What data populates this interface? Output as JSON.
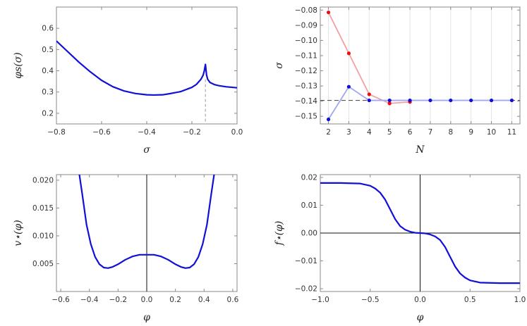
{
  "chart_data": [
    {
      "type": "line",
      "xlabel": "σ",
      "ylabel": "φs(σ)",
      "xlim": [
        -0.8,
        0.0
      ],
      "ylim": [
        0.15,
        0.7
      ],
      "xticks": [
        -0.8,
        -0.6,
        -0.4,
        -0.2,
        0.0
      ],
      "xtick_labels": [
        "−0.8",
        "−0.6",
        "−0.4",
        "−0.2",
        "0.0"
      ],
      "yticks": [
        0.2,
        0.3,
        0.4,
        0.5,
        0.6
      ],
      "ytick_labels": [
        "0.2",
        "0.3",
        "0.4",
        "0.5",
        "0.6"
      ],
      "curve_color": "#1010d8",
      "series": [
        {
          "x": [
            -0.8,
            -0.75,
            -0.7,
            -0.65,
            -0.6,
            -0.55,
            -0.5,
            -0.45,
            -0.4,
            -0.37,
            -0.33,
            -0.3,
            -0.25,
            -0.2,
            -0.18,
            -0.16,
            -0.15,
            -0.145,
            -0.14,
            -0.135,
            -0.13,
            -0.12,
            -0.1,
            -0.08,
            -0.05,
            -0.02,
            0.0
          ],
          "y": [
            0.54,
            0.49,
            0.44,
            0.395,
            0.355,
            0.325,
            0.305,
            0.293,
            0.287,
            0.286,
            0.287,
            0.292,
            0.302,
            0.322,
            0.336,
            0.36,
            0.38,
            0.4,
            0.43,
            0.38,
            0.36,
            0.345,
            0.335,
            0.33,
            0.325,
            0.322,
            0.32
          ]
        }
      ],
      "reference_vline": {
        "x": -0.14,
        "y_top": 0.36,
        "color": "#aaaaaa"
      }
    },
    {
      "type": "line",
      "xlabel": "N",
      "ylabel": "σ",
      "xlim": [
        1.6,
        11.4
      ],
      "ylim": [
        -0.155,
        -0.078
      ],
      "xticks": [
        2,
        3,
        4,
        5,
        6,
        7,
        8,
        9,
        10,
        11
      ],
      "xtick_labels": [
        "2",
        "3",
        "4",
        "5",
        "6",
        "7",
        "8",
        "9",
        "10",
        "11"
      ],
      "yticks": [
        -0.08,
        -0.09,
        -0.1,
        -0.11,
        -0.12,
        -0.13,
        -0.14,
        -0.15
      ],
      "ytick_labels": [
        "−0.08",
        "−0.09",
        "−0.10",
        "−0.11",
        "−0.12",
        "−0.13",
        "−0.14",
        "−0.15"
      ],
      "grid": "x-ticks",
      "reference_hline": {
        "y": -0.1395,
        "color": "#555555"
      },
      "series": [
        {
          "color": "#e81010",
          "line_color": "#f4a0a0",
          "x": [
            2,
            3,
            4,
            5,
            6
          ],
          "y": [
            -0.0815,
            -0.1085,
            -0.1355,
            -0.1415,
            -0.1405
          ]
        },
        {
          "color": "#1010d8",
          "line_color": "#a0a8f0",
          "x": [
            2,
            3,
            4,
            5,
            6,
            7,
            8,
            9,
            10,
            11
          ],
          "y": [
            -0.152,
            -0.1305,
            -0.1395,
            -0.1395,
            -0.1395,
            -0.1395,
            -0.1395,
            -0.1395,
            -0.1395,
            -0.1395
          ]
        }
      ]
    },
    {
      "type": "line",
      "xlabel": "φ",
      "ylabel": "v⋆(φ)",
      "xlim": [
        -0.63,
        0.63
      ],
      "ylim": [
        0.0,
        0.021
      ],
      "xticks": [
        -0.6,
        -0.4,
        -0.2,
        0.0,
        0.2,
        0.4,
        0.6
      ],
      "xtick_labels": [
        "−0.6",
        "−0.4",
        "−0.2",
        "0.0",
        "0.2",
        "0.4",
        "0.6"
      ],
      "yticks": [
        0.005,
        0.01,
        0.015,
        0.02
      ],
      "ytick_labels": [
        "0.005",
        "0.010",
        "0.015",
        "0.020"
      ],
      "curve_color": "#1010d8",
      "axis_vline": 0.0,
      "series": [
        {
          "x": [
            -0.47,
            -0.45,
            -0.42,
            -0.39,
            -0.36,
            -0.33,
            -0.3,
            -0.27,
            -0.24,
            -0.2,
            -0.15,
            -0.1,
            -0.05,
            0.0,
            0.05,
            0.1,
            0.15,
            0.2,
            0.24,
            0.27,
            0.3,
            0.33,
            0.36,
            0.39,
            0.42,
            0.45,
            0.47
          ],
          "y": [
            0.021,
            0.0175,
            0.012,
            0.0085,
            0.0062,
            0.0049,
            0.0043,
            0.0042,
            0.0044,
            0.0049,
            0.0057,
            0.0063,
            0.0066,
            0.0066,
            0.0066,
            0.0063,
            0.0057,
            0.0049,
            0.0044,
            0.0042,
            0.0043,
            0.0049,
            0.0062,
            0.0085,
            0.012,
            0.0175,
            0.021
          ]
        }
      ]
    },
    {
      "type": "line",
      "xlabel": "φ",
      "ylabel": "f⋆(φ)",
      "xlim": [
        -1.0,
        1.0
      ],
      "ylim": [
        -0.021,
        0.021
      ],
      "xticks": [
        -1.0,
        -0.5,
        0.0,
        0.5,
        1.0
      ],
      "xtick_labels": [
        "−1.0",
        "−0.5",
        "0.0",
        "0.5",
        "1.0"
      ],
      "yticks": [
        0.02,
        0.01,
        0.0,
        -0.01,
        -0.02
      ],
      "ytick_labels": [
        "0.02",
        "0.01",
        "0.00",
        "−0.01",
        "−0.02"
      ],
      "curve_color": "#1010d8",
      "axis_vline": 0.0,
      "axis_hline": 0.0,
      "series": [
        {
          "x": [
            -1.0,
            -0.8,
            -0.6,
            -0.5,
            -0.45,
            -0.4,
            -0.35,
            -0.3,
            -0.25,
            -0.2,
            -0.15,
            -0.1,
            -0.05,
            0.0,
            0.05,
            0.1,
            0.15,
            0.2,
            0.25,
            0.3,
            0.35,
            0.4,
            0.45,
            0.5,
            0.6,
            0.8,
            1.0
          ],
          "y": [
            0.018,
            0.018,
            0.0178,
            0.017,
            0.016,
            0.0145,
            0.012,
            0.0085,
            0.005,
            0.0025,
            0.0012,
            0.0005,
            0.0001,
            0.0,
            -0.0001,
            -0.0005,
            -0.0012,
            -0.0025,
            -0.005,
            -0.0085,
            -0.012,
            -0.0145,
            -0.016,
            -0.017,
            -0.0178,
            -0.018,
            -0.018
          ]
        }
      ]
    }
  ]
}
